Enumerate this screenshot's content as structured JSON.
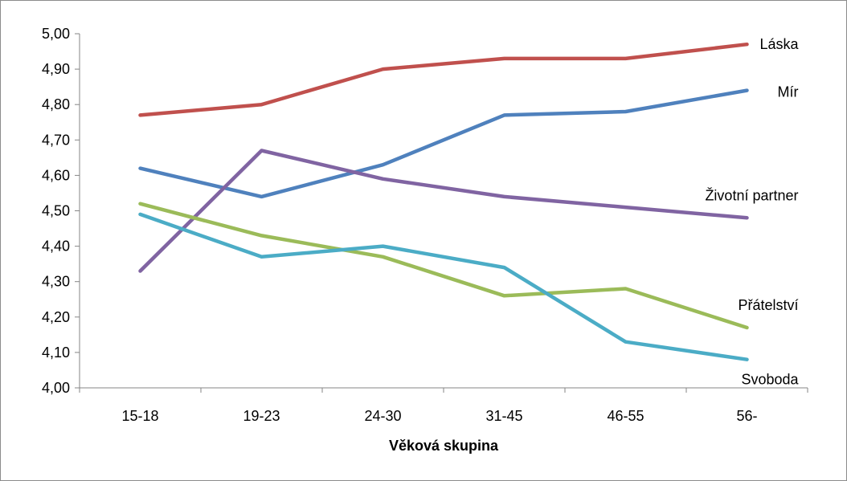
{
  "chart_data": {
    "type": "line",
    "title": "",
    "xlabel": "Věková skupina",
    "ylabel": "",
    "ylim": [
      4.0,
      5.0
    ],
    "y_ticks": [
      "4,00",
      "4,10",
      "4,20",
      "4,30",
      "4,40",
      "4,50",
      "4,60",
      "4,70",
      "4,80",
      "4,90",
      "5,00"
    ],
    "categories": [
      "15-18",
      "19-23",
      "24-30",
      "31-45",
      "46-55",
      "56-"
    ],
    "grid": false,
    "legend": "none",
    "series": [
      {
        "name": "Láska",
        "color": "#C0504D",
        "values": [
          4.77,
          4.8,
          4.9,
          4.93,
          4.93,
          4.97
        ]
      },
      {
        "name": "Mír",
        "color": "#4F81BD",
        "values": [
          4.62,
          4.54,
          4.63,
          4.77,
          4.78,
          4.84
        ]
      },
      {
        "name": "Životní partner",
        "color": "#8064A2",
        "values": [
          4.33,
          4.67,
          4.59,
          4.54,
          4.51,
          4.48
        ]
      },
      {
        "name": "Přátelství",
        "color": "#9BBB59",
        "values": [
          4.52,
          4.43,
          4.37,
          4.26,
          4.28,
          4.17
        ]
      },
      {
        "name": "Svoboda",
        "color": "#4BACC6",
        "values": [
          4.49,
          4.37,
          4.4,
          4.34,
          4.13,
          4.08
        ]
      }
    ]
  }
}
